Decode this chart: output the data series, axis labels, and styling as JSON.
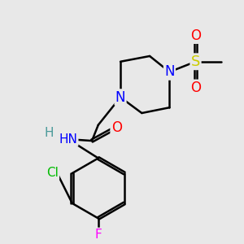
{
  "bg_color": "#e8e8e8",
  "bond_color": "#000000",
  "bond_width": 1.8,
  "atom_colors": {
    "N": "#0000ff",
    "O": "#ff0000",
    "S": "#cccc00",
    "Cl": "#00bb00",
    "F": "#ff00ff",
    "H": "#4a9a9a",
    "C": "#000000"
  },
  "font_size": 11
}
